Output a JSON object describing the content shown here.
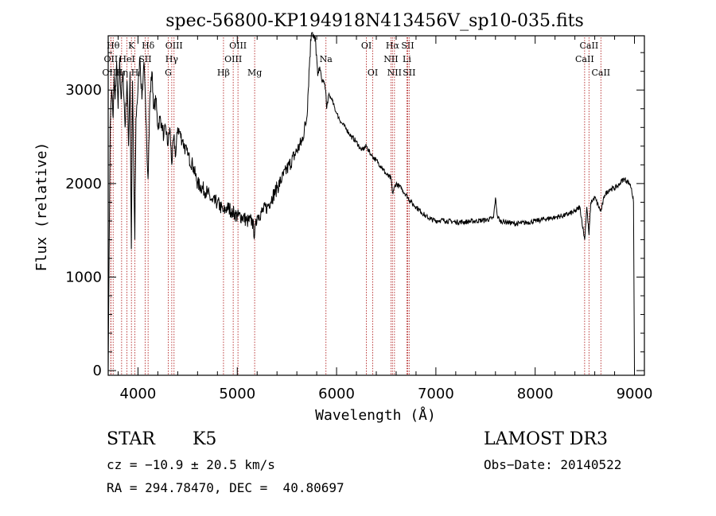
{
  "chart_data": {
    "type": "line",
    "title": "spec-56800-KP194918N413456V_sp10-035.fits",
    "xlabel": "Wavelength (Å)",
    "ylabel": "Flux (relative)",
    "xlim": [
      3700,
      9100
    ],
    "ylim": [
      -50,
      3580
    ],
    "xticks": [
      4000,
      5000,
      6000,
      7000,
      8000,
      9000
    ],
    "yticks": [
      0,
      1000,
      2000,
      3000
    ],
    "xtick_labels": [
      "4000",
      "5000",
      "6000",
      "7000",
      "8000",
      "9000"
    ],
    "ytick_labels": [
      "0",
      "1000",
      "2000",
      "3000"
    ],
    "grid": false,
    "line_color": "#000000",
    "marker_color": "#b22222",
    "series": [
      {
        "x": [
          3700,
          3710,
          3720,
          3735,
          3750,
          3760,
          3770,
          3785,
          3800,
          3815,
          3830,
          3850,
          3870,
          3890,
          3905,
          3920,
          3933,
          3945,
          3960,
          3968,
          3980,
          4000,
          4020,
          4040,
          4060,
          4080,
          4101,
          4120,
          4140,
          4160,
          4180,
          4200,
          4220,
          4240,
          4260,
          4280,
          4300,
          4320,
          4340,
          4360,
          4380,
          4400,
          4450,
          4500,
          4550,
          4600,
          4650,
          4700,
          4750,
          4800,
          4861,
          4900,
          4950,
          5000,
          5050,
          5100,
          5150,
          5175,
          5200,
          5250,
          5300,
          5350,
          5400,
          5450,
          5500,
          5550,
          5600,
          5650,
          5700,
          5730,
          5750,
          5770,
          5790,
          5810,
          5830,
          5850,
          5870,
          5890,
          5900,
          5920,
          5950,
          6000,
          6050,
          6100,
          6150,
          6200,
          6250,
          6300,
          6350,
          6400,
          6450,
          6500,
          6550,
          6563,
          6600,
          6650,
          6700,
          6750,
          6800,
          6850,
          6900,
          6950,
          7000,
          7050,
          7100,
          7200,
          7300,
          7400,
          7500,
          7580,
          7600,
          7620,
          7650,
          7700,
          7800,
          7900,
          8000,
          8100,
          8200,
          8300,
          8400,
          8450,
          8498,
          8520,
          8542,
          8560,
          8600,
          8662,
          8700,
          8750,
          8800,
          8850,
          8870,
          8900,
          8950,
          8970,
          8990,
          9000
        ],
        "y": [
          0,
          1300,
          2600,
          3000,
          2700,
          3150,
          2900,
          3300,
          2800,
          3350,
          2900,
          3200,
          2600,
          3100,
          2400,
          3200,
          1300,
          3100,
          1900,
          1400,
          2700,
          3000,
          3350,
          2900,
          3300,
          2700,
          2050,
          2900,
          3200,
          2800,
          2900,
          2600,
          2700,
          2650,
          2500,
          2600,
          2400,
          2600,
          2200,
          2500,
          2300,
          2600,
          2450,
          2300,
          2200,
          2000,
          1950,
          1900,
          1800,
          1800,
          1700,
          1750,
          1700,
          1650,
          1650,
          1600,
          1600,
          1450,
          1650,
          1700,
          1750,
          1850,
          1950,
          2050,
          2150,
          2250,
          2350,
          2450,
          2700,
          3350,
          3700,
          3550,
          3500,
          3150,
          3250,
          3100,
          3100,
          3000,
          2800,
          2950,
          2900,
          2750,
          2650,
          2580,
          2500,
          2450,
          2350,
          2400,
          2300,
          2250,
          2180,
          2100,
          2050,
          1900,
          2000,
          1950,
          1880,
          1800,
          1750,
          1700,
          1650,
          1620,
          1600,
          1610,
          1600,
          1590,
          1590,
          1600,
          1610,
          1630,
          1850,
          1650,
          1600,
          1590,
          1570,
          1580,
          1600,
          1620,
          1640,
          1660,
          1700,
          1750,
          1400,
          1750,
          1450,
          1800,
          1850,
          1700,
          1880,
          1940,
          1950,
          1990,
          2030,
          2050,
          2000,
          1950,
          1800,
          0
        ]
      }
    ],
    "markers": [
      {
        "name": "Hθ",
        "wavelength": 3750,
        "row": 1
      },
      {
        "name": "OII",
        "wavelength": 3727,
        "row": 2
      },
      {
        "name": "OIII",
        "wavelength": 3727,
        "row": 3
      },
      {
        "name": "K",
        "wavelength": 3934,
        "row": 1
      },
      {
        "name": "HeI",
        "wavelength": 3889,
        "row": 2
      },
      {
        "name": "Hη",
        "wavelength": 3835,
        "row": 3
      },
      {
        "name": "Hδ",
        "wavelength": 4102,
        "row": 1
      },
      {
        "name": "SII",
        "wavelength": 4072,
        "row": 2
      },
      {
        "name": "H",
        "wavelength": 3969,
        "row": 3
      },
      {
        "name": "OIII",
        "wavelength": 4363,
        "row": 1
      },
      {
        "name": "Hγ",
        "wavelength": 4340,
        "row": 2
      },
      {
        "name": "G",
        "wavelength": 4305,
        "row": 3
      },
      {
        "name": "OIII",
        "wavelength": 5007,
        "row": 1
      },
      {
        "name": "OIII",
        "wavelength": 4959,
        "row": 2
      },
      {
        "name": "Hβ",
        "wavelength": 4861,
        "row": 3
      },
      {
        "name": "Mg",
        "wavelength": 5175,
        "row": 3
      },
      {
        "name": "Na",
        "wavelength": 5893,
        "row": 2
      },
      {
        "name": "OI",
        "wavelength": 6300,
        "row": 1
      },
      {
        "name": "OI",
        "wavelength": 6364,
        "row": 3
      },
      {
        "name": "Hα",
        "wavelength": 6563,
        "row": 1
      },
      {
        "name": "SII",
        "wavelength": 6716,
        "row": 1
      },
      {
        "name": "NII",
        "wavelength": 6548,
        "row": 2
      },
      {
        "name": "Li",
        "wavelength": 6708,
        "row": 2
      },
      {
        "name": "NII",
        "wavelength": 6583,
        "row": 3
      },
      {
        "name": "SII",
        "wavelength": 6731,
        "row": 3
      },
      {
        "name": "CaII",
        "wavelength": 8542,
        "row": 1
      },
      {
        "name": "CaII",
        "wavelength": 8498,
        "row": 2
      },
      {
        "name": "CaII",
        "wavelength": 8662,
        "row": 3
      }
    ]
  },
  "info": {
    "object_class": "STAR",
    "subclass": "K5",
    "survey": "LAMOST DR3",
    "redshift_line": "cz = −10.9 ± 20.5 km/s",
    "obs_date_line": "Obs−Date: 20140522",
    "coords_line": "RA = 294.78470, DEC =  40.80697"
  }
}
